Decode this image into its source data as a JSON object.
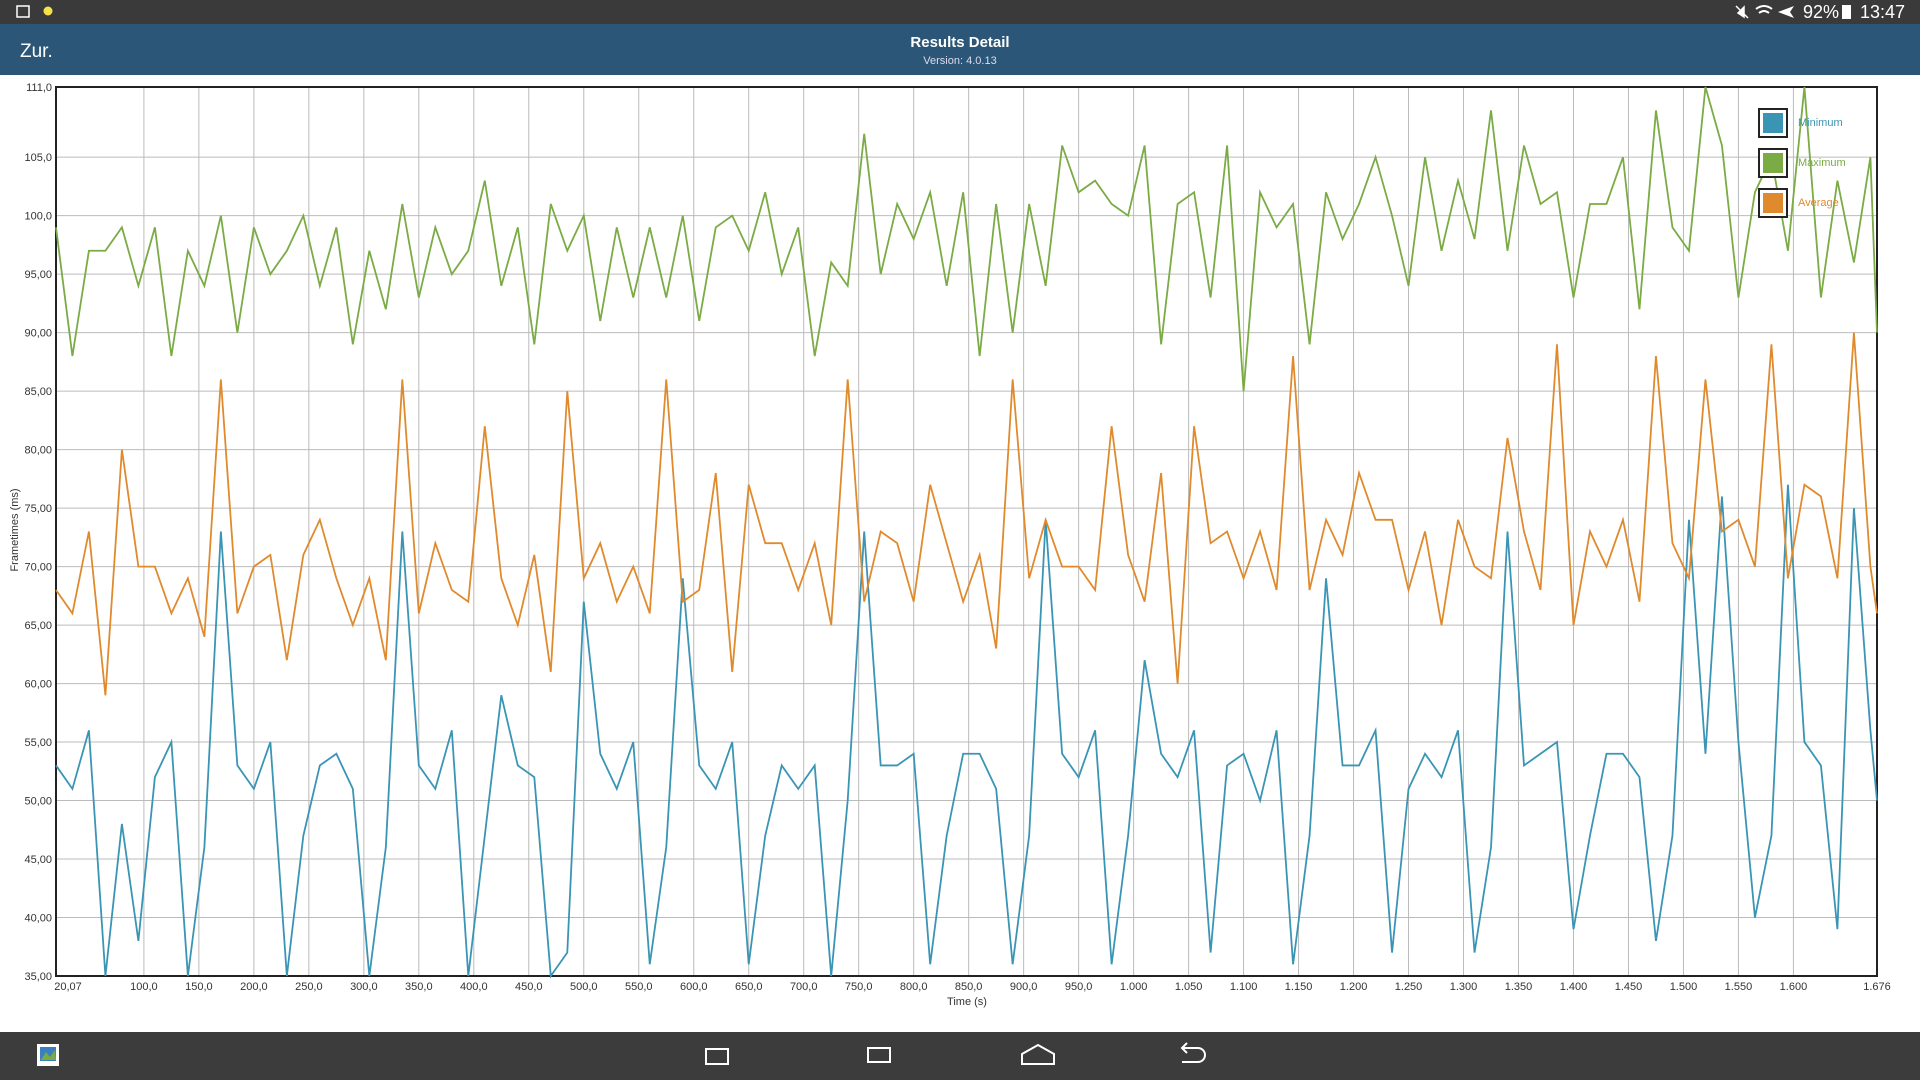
{
  "status_bar": {
    "battery": "92%",
    "time": "13:47"
  },
  "app_bar": {
    "back": "Zur.",
    "title": "Results Detail",
    "subtitle": "Version: 4.0.13"
  },
  "chart_data": {
    "type": "line",
    "xlabel": "Time (s)",
    "ylabel": "Frametimes (ms)",
    "x": [
      20.07,
      35,
      50,
      65,
      80,
      95,
      110,
      125,
      140,
      155,
      170,
      185,
      200,
      215,
      230,
      245,
      260,
      275,
      290,
      305,
      320,
      335,
      350,
      365,
      380,
      395,
      410,
      425,
      440,
      455,
      470,
      485,
      500,
      515,
      530,
      545,
      560,
      575,
      590,
      605,
      620,
      635,
      650,
      665,
      680,
      695,
      710,
      725,
      740,
      755,
      770,
      785,
      800,
      815,
      830,
      845,
      860,
      875,
      890,
      905,
      920,
      935,
      950,
      965,
      980,
      995,
      1010,
      1025,
      1040,
      1055,
      1070,
      1085,
      1100,
      1115,
      1130,
      1145,
      1160,
      1175,
      1190,
      1205,
      1220,
      1235,
      1250,
      1265,
      1280,
      1295,
      1310,
      1325,
      1340,
      1355,
      1370,
      1385,
      1400,
      1415,
      1430,
      1445,
      1460,
      1475,
      1490,
      1505,
      1520,
      1535,
      1550,
      1565,
      1580,
      1595,
      1610,
      1625,
      1640,
      1655,
      1670,
      1676
    ],
    "series": [
      {
        "name": "Minimum",
        "color": "#3a95b5",
        "values": [
          53,
          51,
          56,
          35,
          48,
          38,
          52,
          55,
          35,
          46,
          73,
          53,
          51,
          55,
          35,
          47,
          53,
          54,
          51,
          35,
          46,
          73,
          53,
          51,
          56,
          35,
          47,
          59,
          53,
          52,
          35,
          37,
          67,
          54,
          51,
          55,
          36,
          46,
          69,
          53,
          51,
          55,
          36,
          47,
          53,
          51,
          53,
          35,
          50,
          73,
          53,
          53,
          54,
          36,
          47,
          54,
          54,
          51,
          36,
          47,
          74,
          54,
          52,
          56,
          36,
          47,
          62,
          54,
          52,
          56,
          37,
          53,
          54,
          50,
          56,
          36,
          47,
          69,
          53,
          53,
          56,
          37,
          51,
          54,
          52,
          56,
          37,
          46,
          73,
          53,
          54,
          55,
          39,
          47,
          54,
          54,
          52,
          38,
          47,
          74,
          54,
          76,
          55,
          40,
          47,
          77,
          55,
          53,
          39,
          75,
          56,
          50
        ]
      },
      {
        "name": "Maximum",
        "color": "#7aab45",
        "values": [
          99,
          88,
          97,
          97,
          99,
          94,
          99,
          88,
          97,
          94,
          100,
          90,
          99,
          95,
          97,
          100,
          94,
          99,
          89,
          97,
          92,
          101,
          93,
          99,
          95,
          97,
          103,
          94,
          99,
          89,
          101,
          97,
          100,
          91,
          99,
          93,
          99,
          93,
          100,
          91,
          99,
          100,
          97,
          102,
          95,
          99,
          88,
          96,
          94,
          107,
          95,
          101,
          98,
          102,
          94,
          102,
          88,
          101,
          90,
          101,
          94,
          106,
          102,
          103,
          101,
          100,
          106,
          89,
          101,
          102,
          93,
          106,
          85,
          102,
          99,
          101,
          89,
          102,
          98,
          101,
          105,
          100,
          94,
          105,
          97,
          103,
          98,
          109,
          97,
          106,
          101,
          102,
          93,
          101,
          101,
          105,
          92,
          109,
          99,
          97,
          111,
          106,
          93,
          102,
          105,
          97,
          111,
          93,
          103,
          96,
          105,
          90
        ]
      },
      {
        "name": "Average",
        "color": "#e08a2e",
        "values": [
          68,
          66,
          73,
          59,
          80,
          70,
          70,
          66,
          69,
          64,
          86,
          66,
          70,
          71,
          62,
          71,
          74,
          69,
          65,
          69,
          62,
          86,
          66,
          72,
          68,
          67,
          82,
          69,
          65,
          71,
          61,
          85,
          69,
          72,
          67,
          70,
          66,
          86,
          67,
          68,
          78,
          61,
          77,
          72,
          72,
          68,
          72,
          65,
          86,
          67,
          73,
          72,
          67,
          77,
          72,
          67,
          71,
          63,
          86,
          69,
          74,
          70,
          70,
          68,
          82,
          71,
          67,
          78,
          60,
          82,
          72,
          73,
          69,
          73,
          68,
          88,
          68,
          74,
          71,
          78,
          74,
          74,
          68,
          73,
          65,
          74,
          70,
          69,
          81,
          73,
          68,
          89,
          65,
          73,
          70,
          74,
          67,
          88,
          72,
          69,
          86,
          73,
          74,
          70,
          89,
          69,
          77,
          76,
          69,
          90,
          70,
          66
        ]
      }
    ],
    "xlim": [
      20.07,
      1676
    ],
    "ylim": [
      35,
      111
    ],
    "xticks": [
      {
        "value": 20.07,
        "label": "20,07"
      },
      {
        "value": 100,
        "label": "100,0"
      },
      {
        "value": 150,
        "label": "150,0"
      },
      {
        "value": 200,
        "label": "200,0"
      },
      {
        "value": 250,
        "label": "250,0"
      },
      {
        "value": 300,
        "label": "300,0"
      },
      {
        "value": 350,
        "label": "350,0"
      },
      {
        "value": 400,
        "label": "400,0"
      },
      {
        "value": 450,
        "label": "450,0"
      },
      {
        "value": 500,
        "label": "500,0"
      },
      {
        "value": 550,
        "label": "550,0"
      },
      {
        "value": 600,
        "label": "600,0"
      },
      {
        "value": 650,
        "label": "650,0"
      },
      {
        "value": 700,
        "label": "700,0"
      },
      {
        "value": 750,
        "label": "750,0"
      },
      {
        "value": 800,
        "label": "800,0"
      },
      {
        "value": 850,
        "label": "850,0"
      },
      {
        "value": 900,
        "label": "900,0"
      },
      {
        "value": 950,
        "label": "950,0"
      },
      {
        "value": 1000,
        "label": "1.000"
      },
      {
        "value": 1050,
        "label": "1.050"
      },
      {
        "value": 1100,
        "label": "1.100"
      },
      {
        "value": 1150,
        "label": "1.150"
      },
      {
        "value": 1200,
        "label": "1.200"
      },
      {
        "value": 1250,
        "label": "1.250"
      },
      {
        "value": 1300,
        "label": "1.300"
      },
      {
        "value": 1350,
        "label": "1.350"
      },
      {
        "value": 1400,
        "label": "1.400"
      },
      {
        "value": 1450,
        "label": "1.450"
      },
      {
        "value": 1500,
        "label": "1.500"
      },
      {
        "value": 1550,
        "label": "1.550"
      },
      {
        "value": 1600,
        "label": "1.600"
      },
      {
        "value": 1676,
        "label": "1.676"
      }
    ],
    "yticks": [
      {
        "value": 35,
        "label": "35,00"
      },
      {
        "value": 40,
        "label": "40,00"
      },
      {
        "value": 45,
        "label": "45,00"
      },
      {
        "value": 50,
        "label": "50,00"
      },
      {
        "value": 55,
        "label": "55,00"
      },
      {
        "value": 60,
        "label": "60,00"
      },
      {
        "value": 65,
        "label": "65,00"
      },
      {
        "value": 70,
        "label": "70,00"
      },
      {
        "value": 75,
        "label": "75,00"
      },
      {
        "value": 80,
        "label": "80,00"
      },
      {
        "value": 85,
        "label": "85,00"
      },
      {
        "value": 90,
        "label": "90,00"
      },
      {
        "value": 95,
        "label": "95,00"
      },
      {
        "value": 100,
        "label": "100,0"
      },
      {
        "value": 105,
        "label": "105,0"
      },
      {
        "value": 111,
        "label": "111,0"
      }
    ],
    "grid": true,
    "legend": "top-right"
  }
}
